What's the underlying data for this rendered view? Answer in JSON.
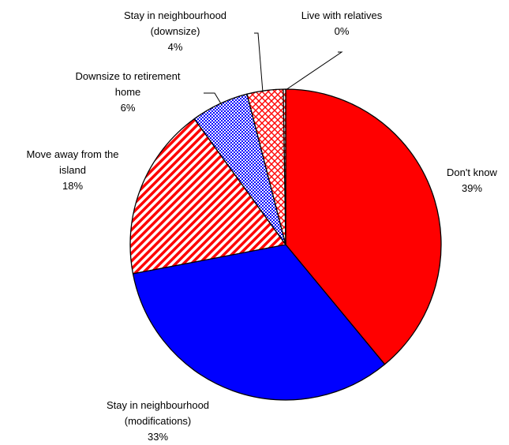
{
  "chart_data": {
    "type": "pie",
    "slices": [
      {
        "label_lines": [
          "Don't know"
        ],
        "value_label": "39%",
        "value": 39,
        "color": "#ff0000",
        "pattern": "solid"
      },
      {
        "label_lines": [
          "Stay in neighbourhood",
          "(modifications)"
        ],
        "value_label": "33%",
        "value": 33,
        "color": "#0000ff",
        "pattern": "solid"
      },
      {
        "label_lines": [
          "Move away from the",
          "island"
        ],
        "value_label": "18%",
        "value": 18,
        "color": "#ff0000",
        "pattern": "diagonal-stripes"
      },
      {
        "label_lines": [
          "Downsize to retirement",
          "home"
        ],
        "value_label": "6%",
        "value": 6,
        "color": "#0000ff",
        "pattern": "dotted-grid"
      },
      {
        "label_lines": [
          "Stay in neighbourhood",
          "(downsize)"
        ],
        "value_label": "4%",
        "value": 4,
        "color": "#ff0000",
        "pattern": "crosshatch"
      },
      {
        "label_lines": [
          "Live with relatives"
        ],
        "value_label": "0%",
        "value": 0,
        "color": "#ff0000",
        "pattern": "solid"
      }
    ]
  }
}
